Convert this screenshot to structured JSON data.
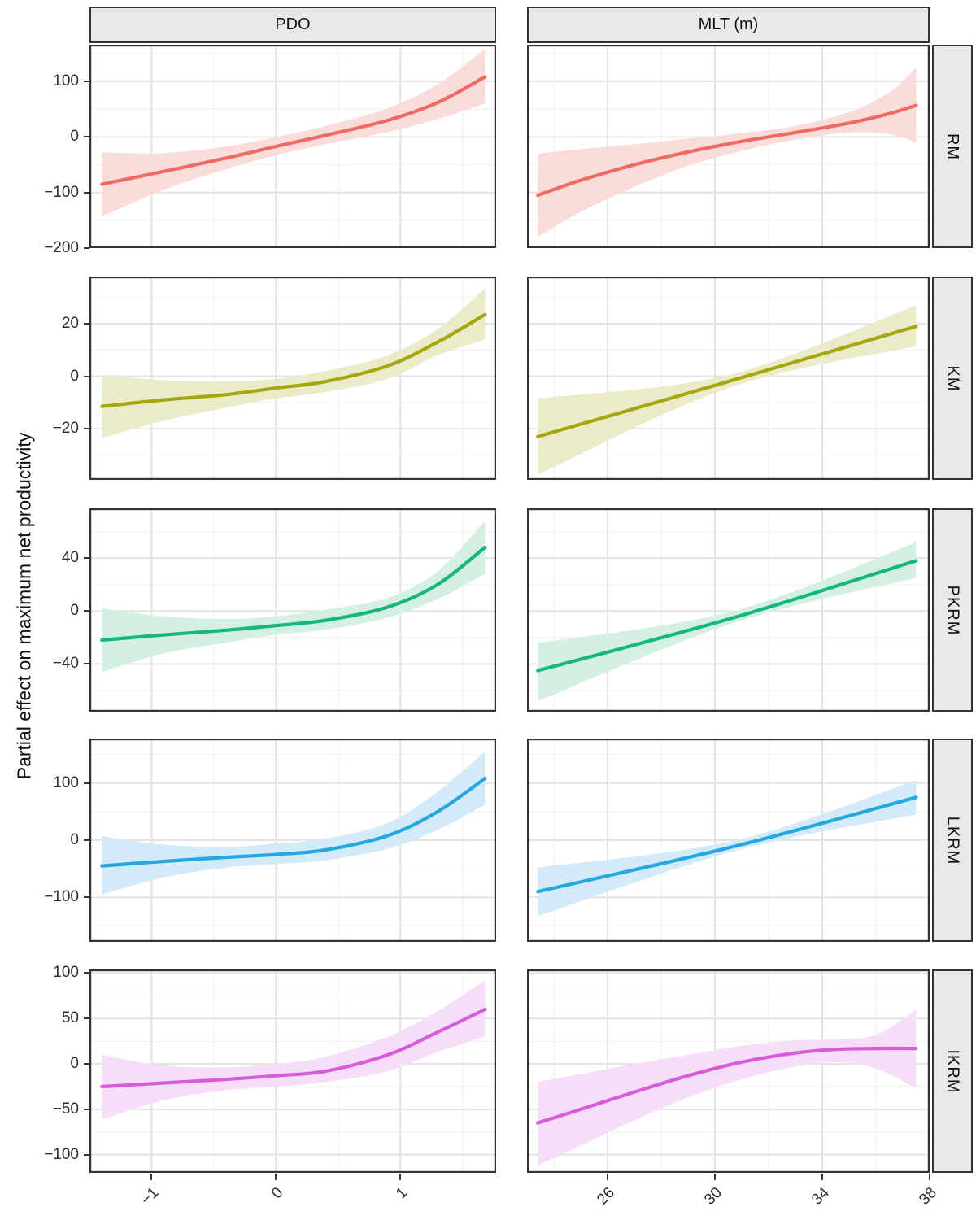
{
  "chart_data": {
    "type": "line",
    "ylabel": "Partial effect on maximum net productivity",
    "legend": "none",
    "grid": true,
    "style": {
      "grid_major": "#E3E3E3",
      "grid_minor": "#F3F3F3",
      "panel_border": "#333333",
      "strip_bg": "#E9E9E9",
      "tick_color": "#333333",
      "text_color": "#2e2e2e",
      "background": "#ffffff"
    },
    "col_facets": [
      {
        "label": "PDO",
        "domain": [
          -1.5,
          1.77
        ],
        "ticks": [
          -1,
          0,
          1
        ]
      },
      {
        "label": "MLT (m)",
        "domain": [
          23.0,
          38.0
        ],
        "ticks": [
          26,
          30,
          34,
          38
        ]
      }
    ],
    "row_facets": [
      {
        "label": "RM",
        "color": "#EE6A63",
        "fill": "#FADCDA",
        "domain": [
          -200,
          166
        ],
        "ticks": [
          100,
          0,
          -100,
          -200
        ]
      },
      {
        "label": "KM",
        "color": "#A6A70E",
        "fill": "#ECEBC9",
        "domain": [
          -39.5,
          38
        ],
        "ticks": [
          20,
          0,
          -20
        ]
      },
      {
        "label": "PKRM",
        "color": "#14B87A",
        "fill": "#D4F0E1",
        "domain": [
          -76,
          77.5
        ],
        "ticks": [
          40,
          0,
          -40
        ]
      },
      {
        "label": "LKRM",
        "color": "#25A8E0",
        "fill": "#D3EAF9",
        "domain": [
          -178,
          178
        ],
        "ticks": [
          100,
          0,
          -100
        ]
      },
      {
        "label": "IKRM",
        "color": "#D65CD9",
        "fill": "#F7DEF8",
        "domain": [
          -120,
          104
        ],
        "ticks": [
          100,
          50,
          0,
          -50,
          -100
        ]
      }
    ],
    "panels": [
      {
        "row": 0,
        "col": 0,
        "x": [
          -1.4,
          -0.9,
          -0.4,
          0,
          0.4,
          0.9,
          1.3,
          1.68
        ],
        "y": [
          -85,
          -62,
          -38,
          -17,
          3,
          30,
          62,
          108
        ],
        "upper": [
          -28,
          -29,
          -17,
          0,
          20,
          52,
          95,
          158
        ],
        "lower": [
          -143,
          -95,
          -58,
          -33,
          -13,
          9,
          32,
          60
        ]
      },
      {
        "row": 0,
        "col": 1,
        "x": [
          23.4,
          25,
          27,
          29,
          31,
          33,
          35,
          36.5,
          37.5
        ],
        "y": [
          -105,
          -78,
          -50,
          -27,
          -8,
          8,
          25,
          42,
          57
        ],
        "upper": [
          -30,
          -22,
          -13,
          -3,
          7,
          20,
          45,
          80,
          125
        ],
        "lower": [
          -180,
          -135,
          -90,
          -52,
          -25,
          -5,
          8,
          5,
          -10
        ]
      },
      {
        "row": 1,
        "col": 0,
        "x": [
          -1.4,
          -0.9,
          -0.4,
          0,
          0.4,
          0.9,
          1.3,
          1.68
        ],
        "y": [
          -11.5,
          -9,
          -7,
          -4.5,
          -2,
          4,
          13,
          23.5
        ],
        "upper": [
          0.5,
          -1.5,
          -2,
          -1,
          2,
          8,
          18,
          33.5
        ],
        "lower": [
          -23.5,
          -17,
          -12,
          -8.5,
          -6,
          -1,
          8,
          14
        ]
      },
      {
        "row": 1,
        "col": 1,
        "x": [
          23.4,
          30.5,
          37.5
        ],
        "y": [
          -23,
          -2,
          19
        ],
        "upper": [
          -8.5,
          0.5,
          27
        ],
        "lower": [
          -37.5,
          -4.5,
          11.5
        ]
      },
      {
        "row": 2,
        "col": 0,
        "x": [
          -1.4,
          -0.9,
          -0.4,
          0,
          0.4,
          0.9,
          1.3,
          1.68
        ],
        "y": [
          -22,
          -18,
          -14.5,
          -11,
          -7,
          3,
          20,
          48
        ],
        "upper": [
          2,
          -4,
          -6,
          -4,
          1,
          10,
          30,
          68
        ],
        "lower": [
          -46,
          -32,
          -24,
          -18,
          -14,
          -5,
          9,
          28
        ]
      },
      {
        "row": 2,
        "col": 1,
        "x": [
          23.4,
          30.7,
          37.5
        ],
        "y": [
          -45,
          -5,
          38
        ],
        "upper": [
          -24,
          0,
          52
        ],
        "lower": [
          -68,
          -9,
          25
        ]
      },
      {
        "row": 3,
        "col": 0,
        "x": [
          -1.4,
          -0.9,
          -0.4,
          0,
          0.4,
          0.9,
          1.3,
          1.68
        ],
        "y": [
          -45,
          -37,
          -30,
          -25,
          -17,
          8,
          50,
          108
        ],
        "upper": [
          7,
          -8,
          -12,
          -6,
          3,
          30,
          85,
          155
        ],
        "lower": [
          -95,
          -65,
          -48,
          -42,
          -35,
          -15,
          18,
          62
        ]
      },
      {
        "row": 3,
        "col": 1,
        "x": [
          23.4,
          30.8,
          37.5
        ],
        "y": [
          -90,
          -10,
          75
        ],
        "upper": [
          -48,
          0,
          105
        ],
        "lower": [
          -133,
          -18,
          45
        ]
      },
      {
        "row": 4,
        "col": 0,
        "x": [
          -1.4,
          -0.9,
          -0.4,
          0,
          0.4,
          0.9,
          1.3,
          1.68
        ],
        "y": [
          -25,
          -21,
          -17,
          -13,
          -8,
          10,
          35,
          60
        ],
        "upper": [
          10,
          -2,
          -4,
          0,
          8,
          30,
          58,
          92
        ],
        "lower": [
          -61,
          -40,
          -29,
          -25,
          -20,
          -8,
          13,
          30
        ]
      },
      {
        "row": 4,
        "col": 1,
        "x": [
          23.4,
          25,
          27,
          29,
          31,
          33,
          34.5,
          36,
          37.5
        ],
        "y": [
          -65,
          -50,
          -31,
          -13,
          2,
          12,
          16,
          17,
          17
        ],
        "upper": [
          -20,
          -11,
          0,
          10,
          20,
          26,
          27,
          32,
          60
        ],
        "lower": [
          -112,
          -90,
          -62,
          -37,
          -17,
          -3,
          2,
          -5,
          -27
        ]
      }
    ]
  }
}
